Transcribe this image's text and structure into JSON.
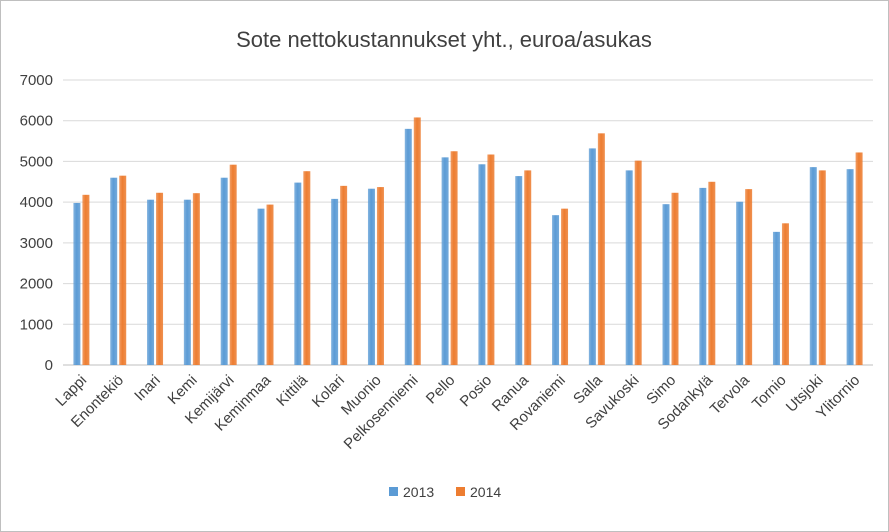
{
  "chart_data": {
    "type": "bar",
    "title": "Sote nettokustannukset yht., euroa/asukas",
    "xlabel": "",
    "ylabel": "",
    "ylim": [
      0,
      7000
    ],
    "yticks": [
      0,
      1000,
      2000,
      3000,
      4000,
      5000,
      6000,
      7000
    ],
    "grid": true,
    "legend_position": "bottom",
    "categories": [
      "Lappi",
      "Enontekiö",
      "Inari",
      "Kemi",
      "Kemijärvi",
      "Keminmaa",
      "Kittilä",
      "Kolari",
      "Muonio",
      "Pelkosenniemi",
      "Pello",
      "Posio",
      "Ranua",
      "Rovaniemi",
      "Salla",
      "Savukoski",
      "Simo",
      "Sodankylä",
      "Tervola",
      "Tornio",
      "Utsjoki",
      "Ylitornio"
    ],
    "series": [
      {
        "name": "2013",
        "color": "#5b9bd5",
        "values": [
          3980,
          4600,
          4060,
          4060,
          4600,
          3840,
          4480,
          4080,
          4330,
          5800,
          5100,
          4930,
          4640,
          3680,
          5320,
          4780,
          3950,
          4350,
          4010,
          3270,
          4860,
          4810
        ]
      },
      {
        "name": "2014",
        "color": "#ed7d31",
        "values": [
          4180,
          4650,
          4230,
          4220,
          4920,
          3940,
          4760,
          4400,
          4370,
          6080,
          5250,
          5170,
          4780,
          3840,
          5690,
          5020,
          4230,
          4500,
          4320,
          3480,
          4780,
          5220
        ]
      }
    ]
  }
}
